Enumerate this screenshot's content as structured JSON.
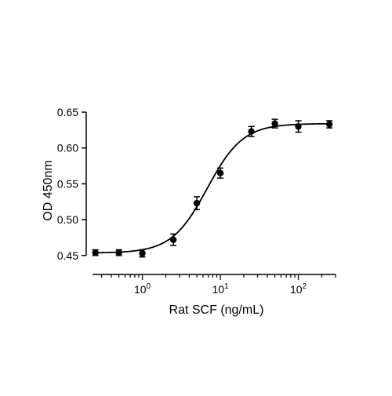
{
  "chart_data": {
    "type": "scatter",
    "xlabel": "Rat SCF (ng/mL)",
    "ylabel": "OD 450nm",
    "xscale": "log",
    "xlim": [
      0.2,
      300
    ],
    "ylim": [
      0.44,
      0.65
    ],
    "x_ticks": [
      {
        "value": 1,
        "base": "10",
        "exp": "0"
      },
      {
        "value": 10,
        "base": "10",
        "exp": "1"
      },
      {
        "value": 100,
        "base": "10",
        "exp": "2"
      }
    ],
    "y_ticks": [
      {
        "value": 0.45,
        "label": "0.45"
      },
      {
        "value": 0.5,
        "label": "0.50"
      },
      {
        "value": 0.55,
        "label": "0.55"
      },
      {
        "value": 0.6,
        "label": "0.60"
      },
      {
        "value": 0.65,
        "label": "0.65"
      }
    ],
    "grid": false,
    "series": [
      {
        "color": "#000000",
        "points": [
          {
            "x": 0.25,
            "y": 0.454,
            "err": 0.004
          },
          {
            "x": 0.5,
            "y": 0.454,
            "err": 0.004
          },
          {
            "x": 1.0,
            "y": 0.453,
            "err": 0.005
          },
          {
            "x": 2.5,
            "y": 0.472,
            "err": 0.008
          },
          {
            "x": 5.0,
            "y": 0.523,
            "err": 0.009
          },
          {
            "x": 10.0,
            "y": 0.565,
            "err": 0.007
          },
          {
            "x": 25.0,
            "y": 0.623,
            "err": 0.007
          },
          {
            "x": 50.0,
            "y": 0.634,
            "err": 0.006
          },
          {
            "x": 100.0,
            "y": 0.63,
            "err": 0.008
          },
          {
            "x": 250.0,
            "y": 0.633,
            "err": 0.005
          }
        ]
      }
    ],
    "fit_curve": {
      "model": "4PL",
      "bottom": 0.4535,
      "top": 0.634,
      "ec50": 6.8,
      "hill": 1.9,
      "color": "#000000"
    }
  }
}
